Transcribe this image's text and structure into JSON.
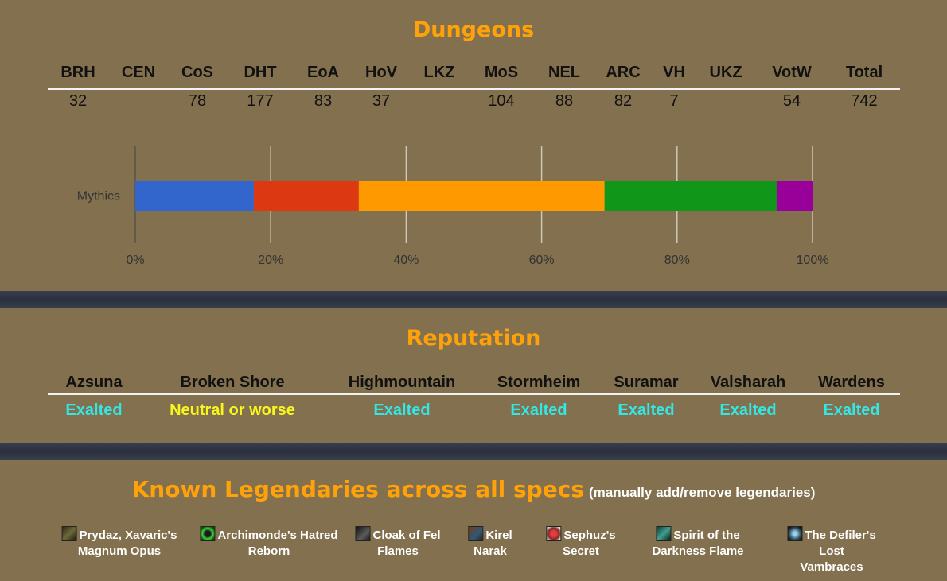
{
  "dungeons": {
    "title": "Dungeons",
    "headers": [
      "BRH",
      "CEN",
      "CoS",
      "DHT",
      "EoA",
      "HoV",
      "LKZ",
      "MoS",
      "NEL",
      "ARC",
      "VH",
      "UKZ",
      "VotW",
      "Total"
    ],
    "values": [
      "32",
      "",
      "78",
      "177",
      "83",
      "37",
      "",
      "104",
      "88",
      "82",
      "7",
      "",
      "54",
      "742"
    ]
  },
  "chart_data": {
    "type": "bar",
    "orientation": "horizontal",
    "stacked": "percent",
    "categories": [
      "Mythics"
    ],
    "series": [
      {
        "values": [
          17.5
        ],
        "color": "#3366cc"
      },
      {
        "values": [
          15.5
        ],
        "color": "#dc3912"
      },
      {
        "values": [
          36.3
        ],
        "color": "#ff9900"
      },
      {
        "values": [
          25.4
        ],
        "color": "#109618"
      },
      {
        "values": [
          5.3
        ],
        "color": "#990099"
      }
    ],
    "xlim": [
      0,
      100
    ],
    "x_ticks": [
      "0%",
      "20%",
      "40%",
      "60%",
      "80%",
      "100%"
    ],
    "grid": true,
    "title": "",
    "xlabel": "",
    "ylabel": ""
  },
  "reputation": {
    "title": "Reputation",
    "factions": [
      {
        "name": "Azsuna",
        "status": "Exalted",
        "level": "exalted"
      },
      {
        "name": "Broken Shore",
        "status": "Neutral or worse",
        "level": "neutral"
      },
      {
        "name": "Highmountain",
        "status": "Exalted",
        "level": "exalted"
      },
      {
        "name": "Stormheim",
        "status": "Exalted",
        "level": "exalted"
      },
      {
        "name": "Suramar",
        "status": "Exalted",
        "level": "exalted"
      },
      {
        "name": "Valsharah",
        "status": "Exalted",
        "level": "exalted"
      },
      {
        "name": "Wardens",
        "status": "Exalted",
        "level": "exalted"
      }
    ],
    "colors": {
      "exalted": "#34e6e6",
      "neutral": "#f7f71e"
    }
  },
  "legendaries": {
    "title": "Known Legendaries across all specs",
    "subtitle": "(manually add/remove legendaries)",
    "items": [
      {
        "line1": "Prydaz, Xavaric's",
        "line2": "Magnum Opus",
        "icon": "prydaz-icon"
      },
      {
        "line1": "Archimonde's Hatred",
        "line2": "Reborn",
        "icon": "archimonde-icon"
      },
      {
        "line1": "Cloak of Fel",
        "line2": "Flames",
        "icon": "cloak-icon"
      },
      {
        "line1": "Kirel",
        "line2": "Narak",
        "icon": "kirel-icon"
      },
      {
        "line1": "Sephuz's",
        "line2": "Secret",
        "icon": "sephuz-icon"
      },
      {
        "line1": "Spirit of the",
        "line2": "Darkness Flame",
        "icon": "spirit-icon"
      },
      {
        "line1": "The Defiler's Lost",
        "line2": "Vambraces",
        "icon": "defiler-icon"
      }
    ]
  },
  "colors": {
    "accent": "#ffa20a",
    "background": "#82704e",
    "divider": "#2f3443"
  }
}
